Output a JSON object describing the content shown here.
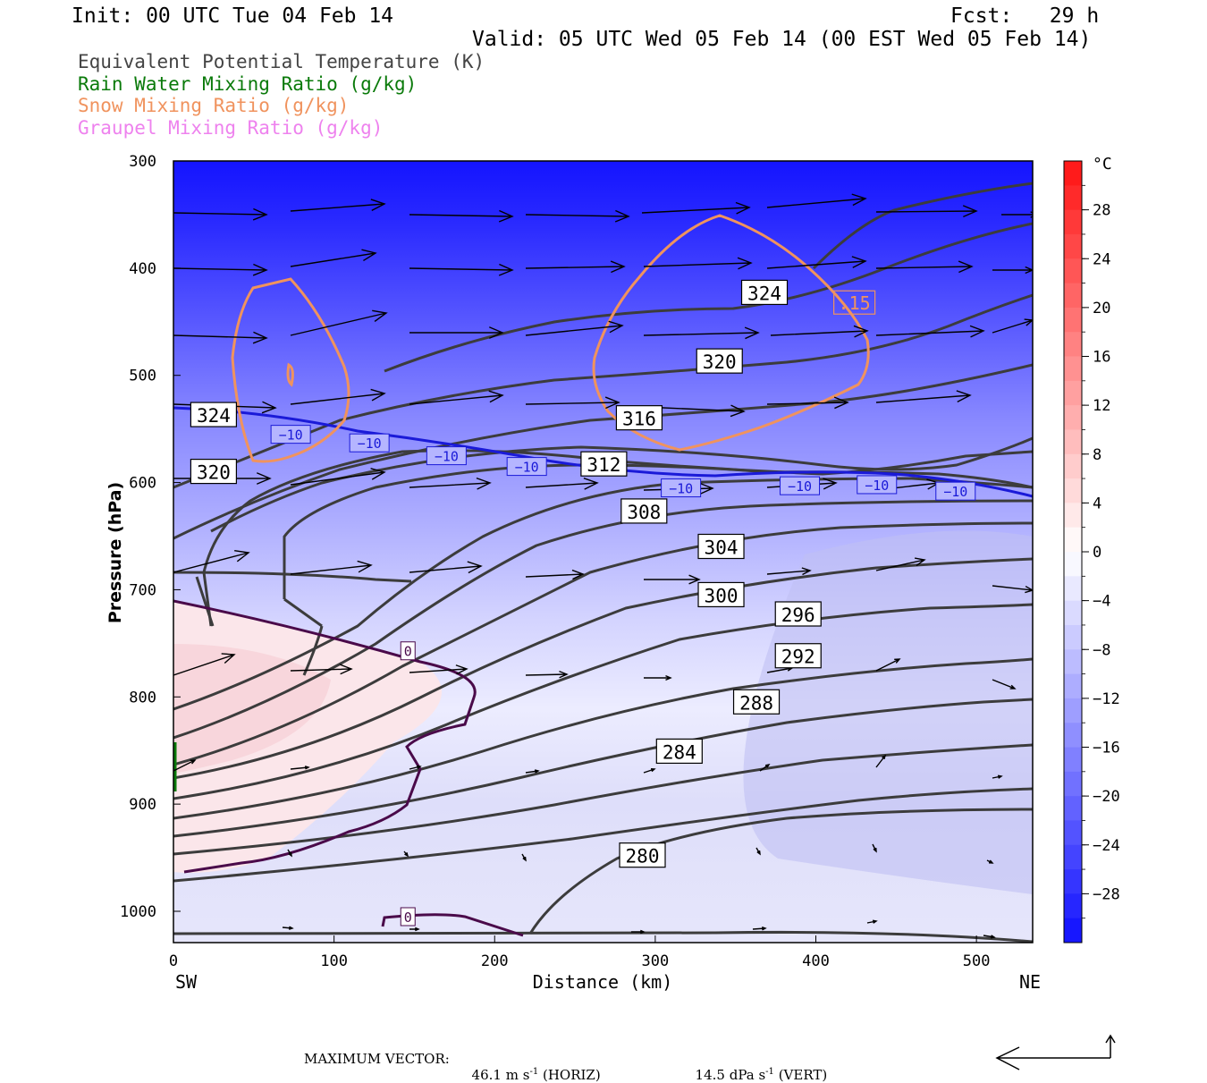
{
  "header": {
    "init": "Init: 00 UTC Tue 04 Feb 14",
    "fcst": "Fcst:   29 h",
    "valid": "Valid: 05 UTC Wed 05 Feb 14 (00 EST Wed 05 Feb 14)"
  },
  "legend": [
    {
      "label": "Equivalent Potential Temperature (K)",
      "color": "#444444"
    },
    {
      "label": "Rain Water Mixing Ratio (g/kg)",
      "color": "#0a7a0a"
    },
    {
      "label": "Snow Mixing Ratio (g/kg)",
      "color": "#f0935e"
    },
    {
      "label": "Graupel Mixing Ratio (g/kg)",
      "color": "#ee82ee"
    }
  ],
  "chart_data": {
    "type": "cross-section",
    "xlabel": "Distance (km)",
    "ylabel": "Pressure (hPa)",
    "xlim": [
      0,
      535
    ],
    "ylim": [
      1025,
      300
    ],
    "x_ticks": [
      0,
      100,
      200,
      300,
      400,
      500
    ],
    "y_ticks": [
      300,
      400,
      500,
      600,
      700,
      800,
      900,
      1000
    ],
    "x_end_labels": {
      "left": "SW",
      "right": "NE"
    },
    "colorbar": {
      "unit": "°C",
      "tick_labels": [
        "28",
        "24",
        "20",
        "16",
        "12",
        "8",
        "4",
        "0",
        "−4",
        "−8",
        "−12",
        "−16",
        "−20",
        "−24",
        "−28"
      ],
      "tick_values": [
        28,
        24,
        20,
        16,
        12,
        8,
        4,
        0,
        -4,
        -8,
        -12,
        -16,
        -20,
        -24,
        -28
      ]
    },
    "theta_e_labels": [
      {
        "text": "324",
        "x": 368,
        "p": 423
      },
      {
        "text": "320",
        "x": 340,
        "p": 487
      },
      {
        "text": "316",
        "x": 290,
        "p": 540
      },
      {
        "text": "312",
        "x": 268,
        "p": 583
      },
      {
        "text": "308",
        "x": 293,
        "p": 627
      },
      {
        "text": "304",
        "x": 341,
        "p": 660
      },
      {
        "text": "300",
        "x": 341,
        "p": 705
      },
      {
        "text": "296",
        "x": 389,
        "p": 723
      },
      {
        "text": "292",
        "x": 389,
        "p": 762
      },
      {
        "text": "288",
        "x": 363,
        "p": 805
      },
      {
        "text": "284",
        "x": 315,
        "p": 851
      },
      {
        "text": "280",
        "x": 292,
        "p": 948
      },
      {
        "text": "324",
        "x": 25,
        "p": 537
      },
      {
        "text": "320",
        "x": 25,
        "p": 590
      }
    ],
    "temperature_labels": [
      {
        "text": "−10",
        "x": 73,
        "p": 555
      },
      {
        "text": "−10",
        "x": 122,
        "p": 563
      },
      {
        "text": "−10",
        "x": 170,
        "p": 575
      },
      {
        "text": "−10",
        "x": 220,
        "p": 585
      },
      {
        "text": "−10",
        "x": 316,
        "p": 605
      },
      {
        "text": "−10",
        "x": 390,
        "p": 603
      },
      {
        "text": "−10",
        "x": 438,
        "p": 602
      },
      {
        "text": "−10",
        "x": 487,
        "p": 608
      },
      {
        "text": "0",
        "x": 146,
        "p": 757
      },
      {
        "text": "0",
        "x": 146,
        "p": 1005
      }
    ],
    "snow_labels": [
      {
        "text": ".15",
        "x": 424,
        "p": 432
      }
    ],
    "max_vector": {
      "horiz_value": "46.1",
      "horiz_unit": "m s",
      "horiz_exp": "-1",
      "horiz_tag": "(HORIZ)",
      "vert_value": "14.5",
      "vert_unit": "dPa s",
      "vert_exp": "-1",
      "vert_tag": "(VERT)",
      "prefix": "MAXIMUM VECTOR:"
    }
  }
}
